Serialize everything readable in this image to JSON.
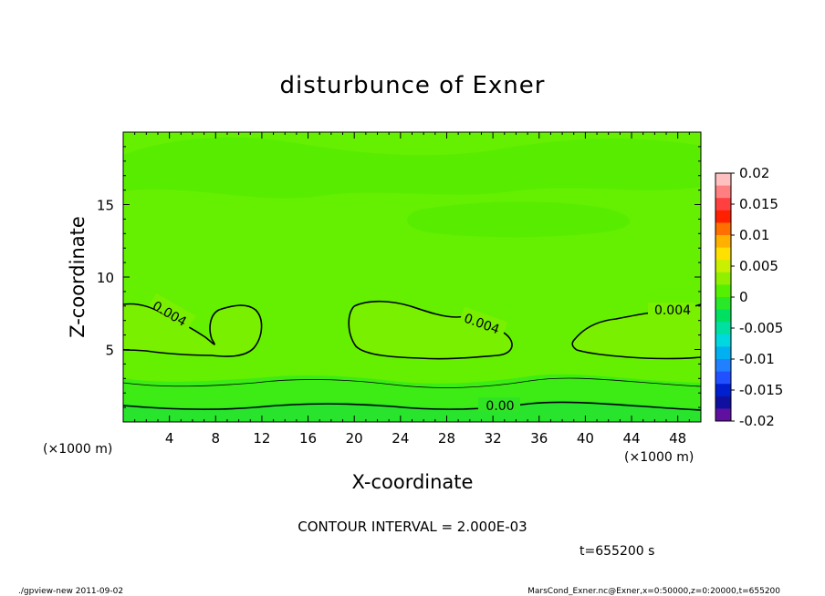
{
  "chart_data": {
    "type": "contour",
    "title": "disturbunce of Exner",
    "xlabel": "X-coordinate",
    "ylabel": "Z-coordinate",
    "x_unit": "(×1000 m)",
    "y_unit": "(×1000 m)",
    "xlim": [
      0,
      50
    ],
    "ylim": [
      0,
      20
    ],
    "x_ticks": [
      "4",
      "8",
      "12",
      "16",
      "20",
      "24",
      "28",
      "32",
      "36",
      "40",
      "44",
      "48"
    ],
    "y_ticks": [
      "5",
      "10",
      "15"
    ],
    "contour_interval_text": "CONTOUR INTERVAL = 2.000E-03",
    "contour_labels": [
      "0.004",
      "0.004",
      "0.004",
      "0.00"
    ],
    "colorbar": {
      "ticks": [
        "0.02",
        "0.015",
        "0.01",
        "0.005",
        "0",
        "-0.005",
        "-0.01",
        "-0.015",
        "-0.02"
      ],
      "colors": [
        "#ffc0c0",
        "#ff8080",
        "#ff4040",
        "#ff2000",
        "#ff7000",
        "#ffb000",
        "#ffe000",
        "#c8f000",
        "#90f000",
        "#55f000",
        "#28e828",
        "#00e060",
        "#00e0a0",
        "#00d8e0",
        "#00b0f0",
        "#2080ff",
        "#2050ff",
        "#0020d0",
        "#1010a0",
        "#6010a0"
      ]
    },
    "time_text": "t=655200 s"
  },
  "footer": {
    "left": "./gpview-new  2011-09-02",
    "right": "MarsCond_Exner.nc@Exner,x=0:50000,z=0:20000,t=655200"
  },
  "colors": {
    "field_base": "#64f000",
    "field_upper": "#58ec00",
    "field_high": "#78f000",
    "field_low": "#3cec14",
    "field_ground": "#28e42c"
  }
}
